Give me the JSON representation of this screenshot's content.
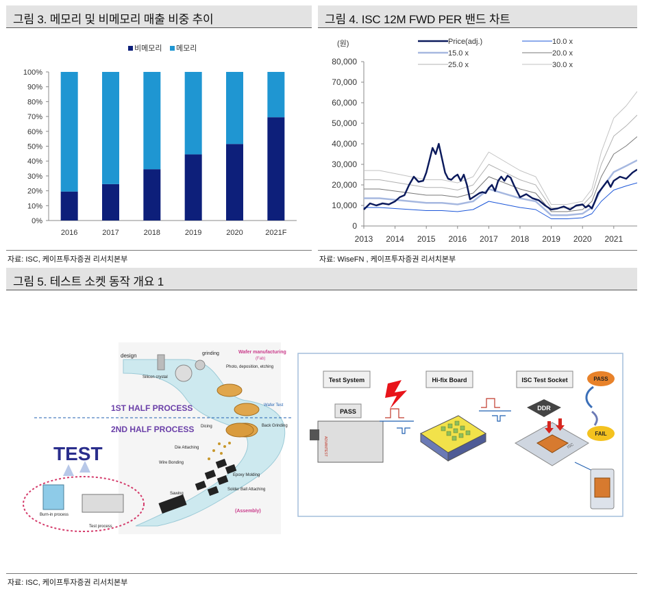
{
  "fig3": {
    "title": "그림 3. 메모리 및 비메모리 매출 비중 추이",
    "source": "자료: ISC, 케이프투자증권 리서치본부",
    "legend_nonmemory": "비메모리",
    "legend_memory": "메모리",
    "colors": {
      "nonmemory": "#0d1f7a",
      "memory": "#1f96d2"
    }
  },
  "fig4": {
    "title": "그림 4. ISC 12M FWD PER 밴드 차트",
    "source": "자료: WiseFN , 케이프투자증권 리서치본부",
    "unit": "(원)",
    "legend": [
      "Price(adj.)",
      "10.0 x",
      "15.0 x",
      "20.0 x",
      "25.0 x",
      "30.0 x"
    ]
  },
  "fig5": {
    "title": "그림 5. 테스트 소켓 동작 개요 1",
    "source": "자료: ISC, 케이프투자증권 리서치본부",
    "left": {
      "test": "TEST",
      "design": "design",
      "grinding": "grinding",
      "silicon": "Silicon crystal",
      "wafer_mfg": "Wafer manufacturing",
      "fab": "(Fab)",
      "photo": "Photo, deposition, etching",
      "first_half": "1ST HALF PROCESS",
      "second_half": "2ND HALF PROCESS",
      "wafer_test": "Wafer Test",
      "dicing": "Dicing",
      "back_grinding": "Back Grinding",
      "die_attaching": "Die Attaching",
      "wire_bonding": "Wire Bonding",
      "epoxy": "Epoxy Molding",
      "solder": "Solder Ball Attaching",
      "sawing": "Sawing",
      "assembly": "(Assembly)",
      "burn_in": "Burn-in process",
      "test_process": "Test process"
    },
    "right": {
      "test_system": "Test System",
      "hifix": "Hi-fix Board",
      "isc_socket": "ISC Test Socket",
      "pass_box": "PASS",
      "ddr": "DDR",
      "pass": "PASS",
      "fail": "FAIL",
      "isc": "ISC",
      "advantest": "ADVANTEST"
    }
  },
  "chart_data": [
    {
      "type": "bar",
      "stacked": true,
      "categories": [
        "2016",
        "2017",
        "2018",
        "2019",
        "2020",
        "2021F"
      ],
      "series": [
        {
          "name": "비메모리",
          "values": [
            19.5,
            24.5,
            34.5,
            44.5,
            51.5,
            69.5
          ]
        },
        {
          "name": "메모리",
          "values": [
            80.5,
            75.5,
            65.5,
            55.5,
            48.5,
            30.5
          ]
        }
      ],
      "ylim": [
        0,
        100
      ],
      "ytick_labels": [
        "0%",
        "10%",
        "20%",
        "30%",
        "40%",
        "50%",
        "60%",
        "70%",
        "80%",
        "90%",
        "100%"
      ],
      "legend_position": "top"
    },
    {
      "type": "line",
      "x_years": [
        "2013",
        "2014",
        "2015",
        "2016",
        "2017",
        "2018",
        "2019",
        "2020",
        "2021"
      ],
      "ylim": [
        0,
        80000
      ],
      "ytick_labels": [
        "0",
        "10,000",
        "20,000",
        "30,000",
        "40,000",
        "50,000",
        "60,000",
        "70,000",
        "80,000"
      ],
      "legend_position": "top",
      "series": [
        {
          "name": "Price(adj.)",
          "color": "#0b1a5c",
          "x": [
            2013.0,
            2013.2,
            2013.4,
            2013.6,
            2013.8,
            2014.0,
            2014.15,
            2014.3,
            2014.45,
            2014.6,
            2014.75,
            2014.9,
            2015.0,
            2015.1,
            2015.2,
            2015.3,
            2015.4,
            2015.5,
            2015.6,
            2015.7,
            2015.8,
            2015.9,
            2016.0,
            2016.1,
            2016.2,
            2016.3,
            2016.4,
            2016.5,
            2016.6,
            2016.7,
            2016.8,
            2016.9,
            2017.0,
            2017.1,
            2017.2,
            2017.3,
            2017.4,
            2017.5,
            2017.6,
            2017.7,
            2017.8,
            2017.9,
            2018.0,
            2018.2,
            2018.4,
            2018.6,
            2018.8,
            2019.0,
            2019.2,
            2019.4,
            2019.6,
            2019.8,
            2020.0,
            2020.1,
            2020.2,
            2020.3,
            2020.4,
            2020.5,
            2020.6,
            2020.7,
            2020.8,
            2020.9,
            2021.0,
            2021.2,
            2021.4,
            2021.6,
            2021.75
          ],
          "y": [
            8000,
            11000,
            10000,
            11000,
            10500,
            12000,
            14000,
            15000,
            20000,
            24000,
            21500,
            22000,
            26000,
            32000,
            38000,
            35000,
            40000,
            33000,
            26000,
            23000,
            22500,
            24000,
            25000,
            22000,
            25000,
            20000,
            13000,
            14000,
            15000,
            16000,
            16500,
            16000,
            18500,
            20000,
            17000,
            22000,
            24000,
            22000,
            24500,
            23500,
            20000,
            17000,
            14000,
            15500,
            13500,
            12500,
            10000,
            8000,
            8500,
            9500,
            8000,
            10000,
            10500,
            9000,
            10000,
            8500,
            12000,
            16000,
            18000,
            20000,
            22000,
            19000,
            22000,
            24000,
            23000,
            26000,
            27500
          ]
        },
        {
          "name": "10.0 x",
          "color": "#1a55d8",
          "x": [
            2013.0,
            2013.5,
            2014.0,
            2014.5,
            2015.0,
            2015.5,
            2016.0,
            2016.5,
            2017.0,
            2017.5,
            2018.0,
            2018.5,
            2019.0,
            2019.5,
            2020.0,
            2020.3,
            2020.6,
            2021.0,
            2021.4,
            2021.75
          ],
          "y": [
            9000,
            9000,
            8500,
            8000,
            7500,
            7500,
            7000,
            8000,
            12000,
            10500,
            9000,
            8000,
            3500,
            3500,
            4000,
            6000,
            12000,
            17500,
            19500,
            21000
          ]
        },
        {
          "name": "15.0 x",
          "color": "#a6b8e0",
          "x": [
            2013.0,
            2013.5,
            2014.0,
            2014.5,
            2015.0,
            2015.5,
            2016.0,
            2016.5,
            2017.0,
            2017.5,
            2018.0,
            2018.5,
            2019.0,
            2019.5,
            2020.0,
            2020.3,
            2020.6,
            2021.0,
            2021.4,
            2021.75
          ],
          "y": [
            13500,
            13500,
            12750,
            12000,
            11250,
            11250,
            10500,
            12000,
            18000,
            15750,
            13500,
            12000,
            5250,
            5250,
            6000,
            9000,
            18000,
            26250,
            29250,
            32000
          ]
        },
        {
          "name": "20.0 x",
          "color": "#777777",
          "x": [
            2013.0,
            2013.5,
            2014.0,
            2014.5,
            2015.0,
            2015.5,
            2016.0,
            2016.5,
            2017.0,
            2017.5,
            2018.0,
            2018.5,
            2019.0,
            2019.5,
            2020.0,
            2020.3,
            2020.6,
            2021.0,
            2021.4,
            2021.75
          ],
          "y": [
            18000,
            18000,
            17000,
            16000,
            15000,
            15000,
            14000,
            16000,
            24000,
            21000,
            18000,
            16000,
            7000,
            7000,
            8000,
            12000,
            24000,
            35000,
            39000,
            43500
          ]
        },
        {
          "name": "25.0 x",
          "color": "#b0b0b0",
          "x": [
            2013.0,
            2013.5,
            2014.0,
            2014.5,
            2015.0,
            2015.5,
            2016.0,
            2016.5,
            2017.0,
            2017.5,
            2018.0,
            2018.5,
            2019.0,
            2019.5,
            2020.0,
            2020.3,
            2020.6,
            2021.0,
            2021.4,
            2021.75
          ],
          "y": [
            22500,
            22500,
            21250,
            20000,
            18750,
            18750,
            17500,
            20000,
            30000,
            26250,
            22500,
            20000,
            8750,
            8750,
            10000,
            15000,
            30000,
            43750,
            48750,
            54000
          ]
        },
        {
          "name": "30.0 x",
          "color": "#c2c2c2",
          "x": [
            2013.0,
            2013.5,
            2014.0,
            2014.5,
            2015.0,
            2015.5,
            2016.0,
            2016.5,
            2017.0,
            2017.5,
            2018.0,
            2018.5,
            2019.0,
            2019.5,
            2020.0,
            2020.3,
            2020.6,
            2021.0,
            2021.4,
            2021.75
          ],
          "y": [
            27000,
            27000,
            25500,
            24000,
            22500,
            22500,
            21000,
            24000,
            36000,
            31500,
            27000,
            24000,
            10500,
            10500,
            12000,
            18000,
            36000,
            52500,
            58500,
            65500
          ]
        }
      ]
    }
  ]
}
